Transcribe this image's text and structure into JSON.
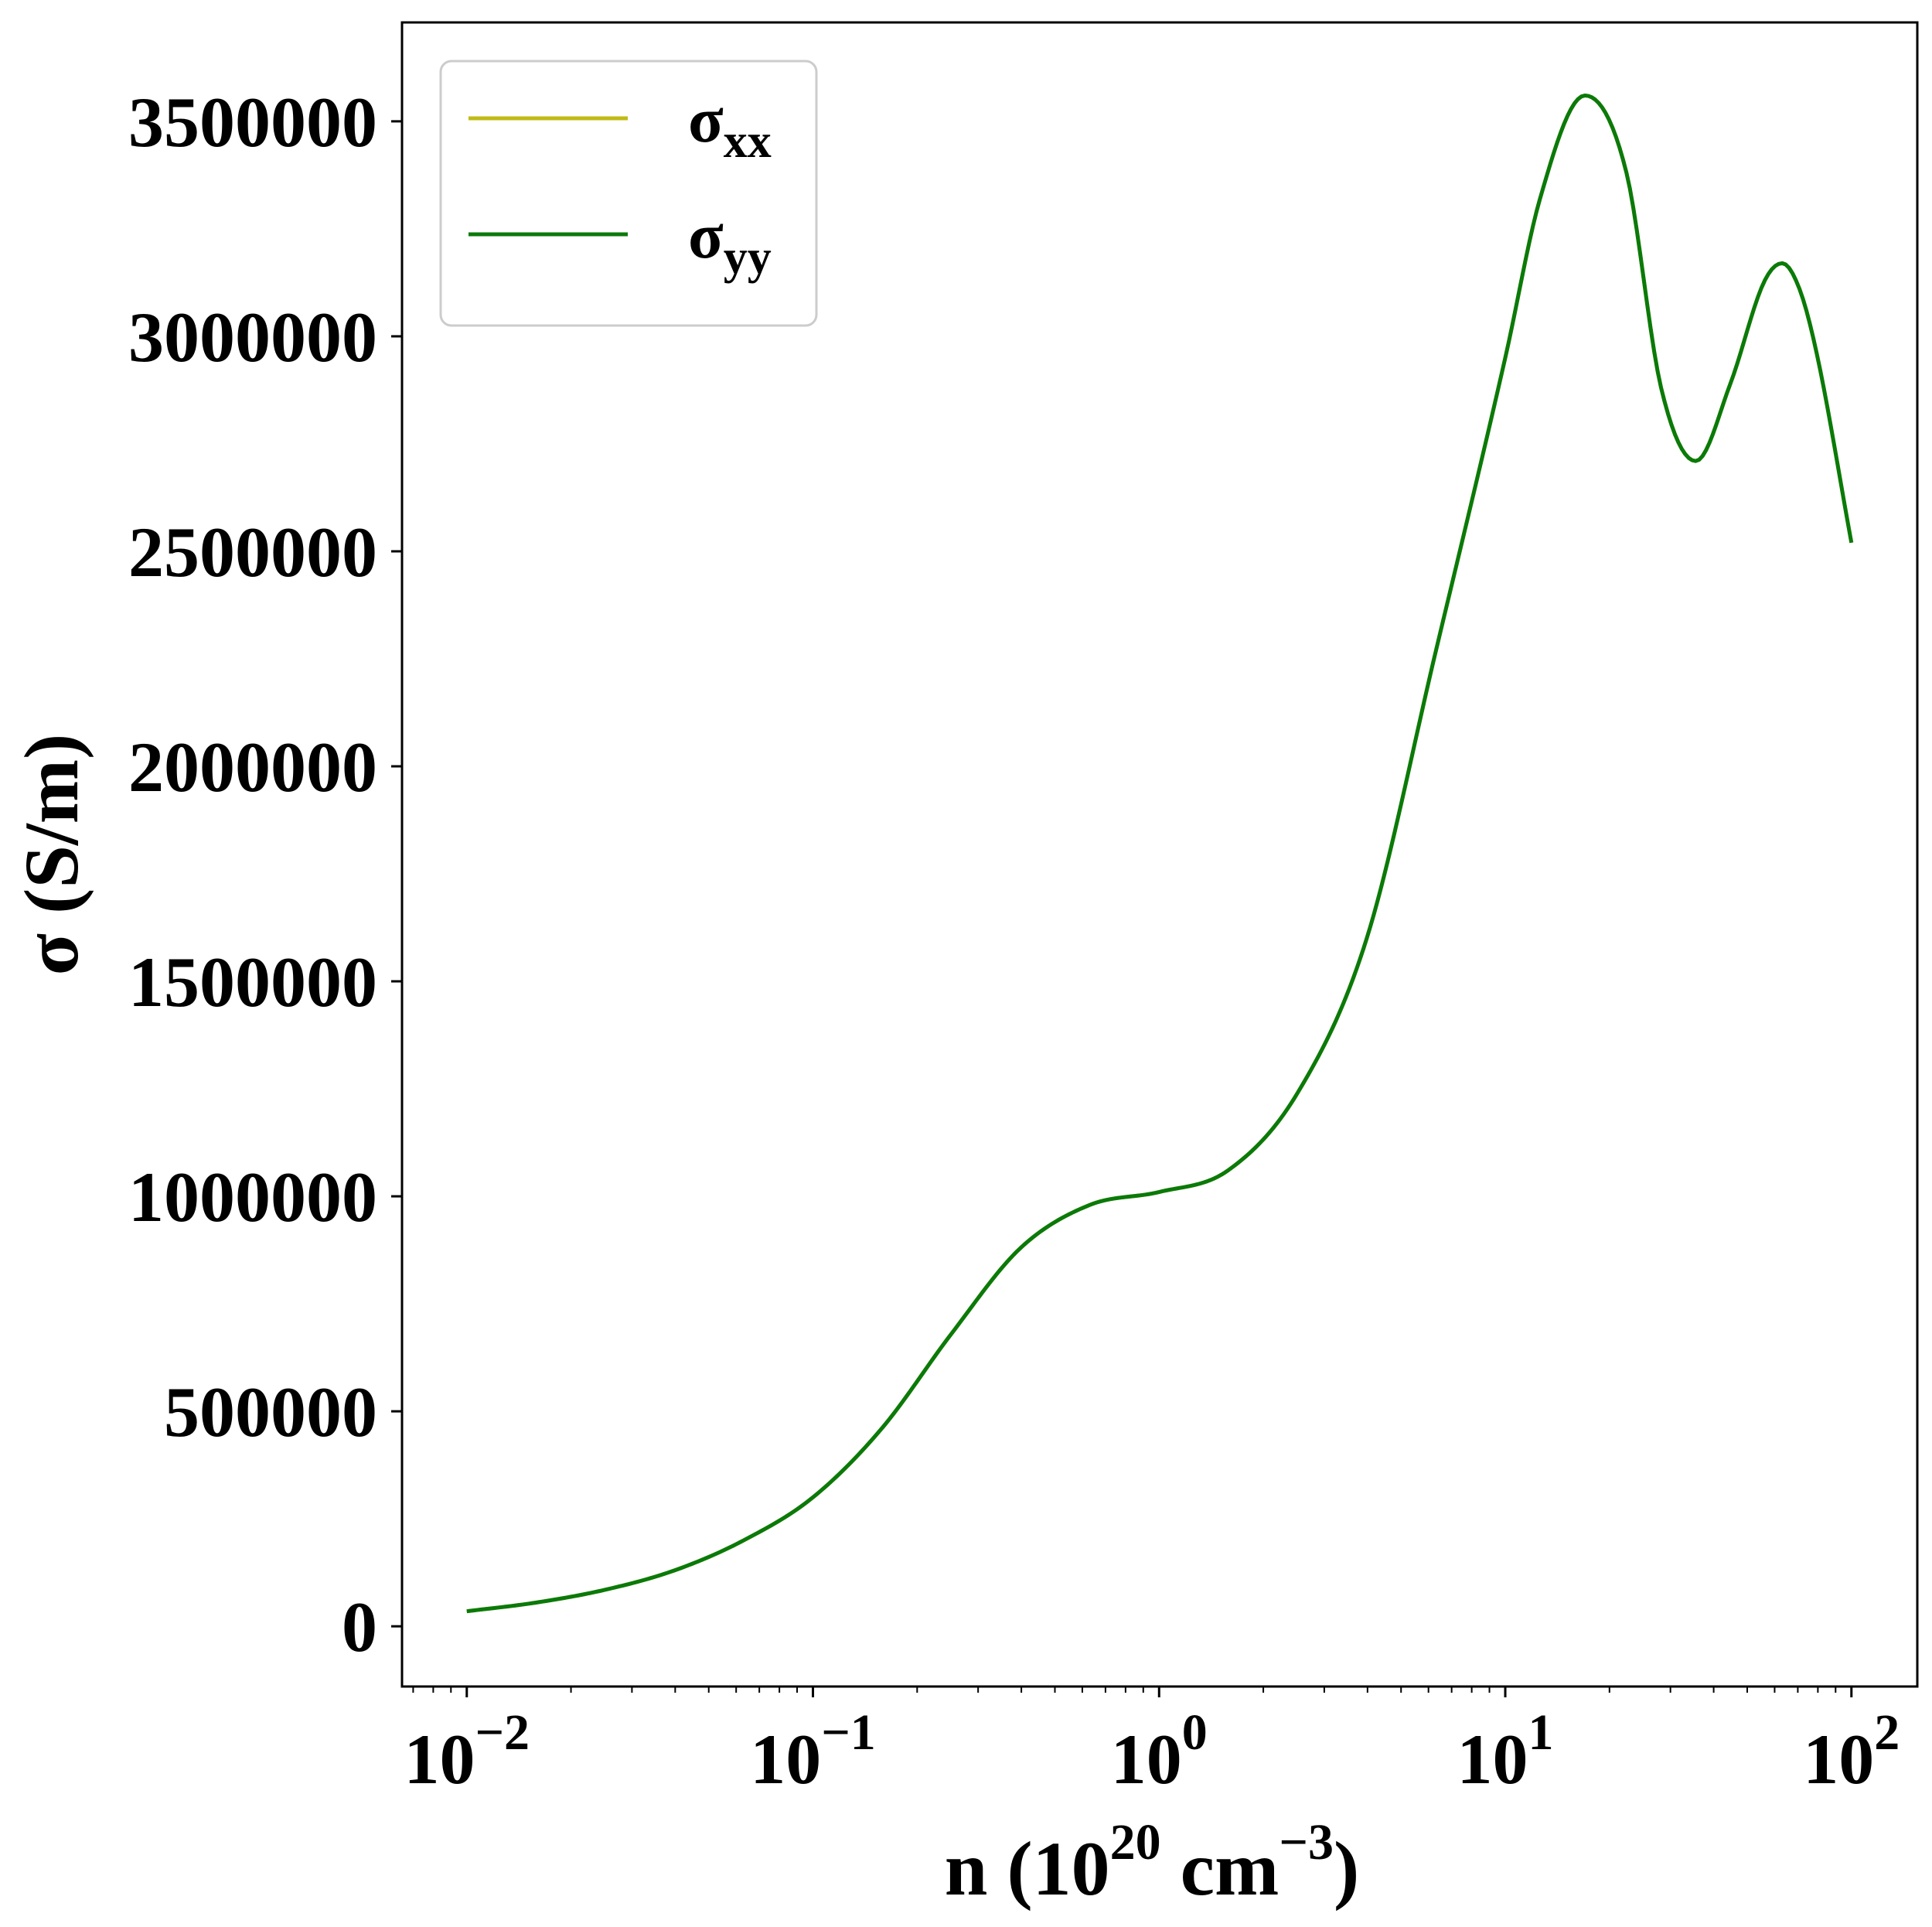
{
  "chart_data": {
    "type": "line",
    "xscale": "log",
    "xlim": [
      0.0065,
      155
    ],
    "ylim": [
      -140000,
      3730000
    ],
    "xlabel": {
      "prefix": "n (10",
      "sup1": "20",
      "mid": " cm",
      "sup2": "−3",
      "suffix": ")"
    },
    "ylabel": "σ (S/m)",
    "grid": false,
    "legend_position": "top-left",
    "yticks": [
      {
        "value": 0,
        "label": "0"
      },
      {
        "value": 500000,
        "label": "500000"
      },
      {
        "value": 1000000,
        "label": "1000000"
      },
      {
        "value": 1500000,
        "label": "1500000"
      },
      {
        "value": 2000000,
        "label": "2000000"
      },
      {
        "value": 2500000,
        "label": "2500000"
      },
      {
        "value": 3000000,
        "label": "3000000"
      },
      {
        "value": 3500000,
        "label": "3500000"
      }
    ],
    "xticks": [
      {
        "value": 0.01,
        "base": "10",
        "exp": "−2"
      },
      {
        "value": 0.1,
        "base": "10",
        "exp": "−1"
      },
      {
        "value": 1,
        "base": "10",
        "exp": "0"
      },
      {
        "value": 10,
        "base": "10",
        "exp": "1"
      },
      {
        "value": 100,
        "base": "10",
        "exp": "2"
      }
    ],
    "series": [
      {
        "name": {
          "base": "σ",
          "sub": "xx"
        },
        "color": "#c0bb15",
        "x": [
          0.01,
          0.0158,
          0.0251,
          0.0398,
          0.0631,
          0.1,
          0.158,
          0.251,
          0.398,
          0.631,
          1.0,
          1.58,
          2.51,
          3.98,
          6.31,
          10.0,
          12.6,
          17.0,
          22.4,
          28.2,
          35.5,
          44.7,
          56.2,
          63.1,
          70.8,
          79.4,
          100.0
        ],
        "y": [
          35000,
          55000,
          85000,
          130000,
          200000,
          300000,
          460000,
          680000,
          880000,
          980000,
          1010000,
          1060000,
          1240000,
          1600000,
          2270000,
          2950000,
          3320000,
          3560000,
          3380000,
          2880000,
          2710000,
          2890000,
          3130000,
          3170000,
          3110000,
          2960000,
          2520000
        ]
      },
      {
        "name": {
          "base": "σ",
          "sub": "yy"
        },
        "color": "#0a7a0a",
        "x": [
          0.01,
          0.0158,
          0.0251,
          0.0398,
          0.0631,
          0.1,
          0.158,
          0.251,
          0.398,
          0.631,
          1.0,
          1.58,
          2.51,
          3.98,
          6.31,
          10.0,
          12.6,
          17.0,
          22.4,
          28.2,
          35.5,
          44.7,
          56.2,
          63.1,
          70.8,
          79.4,
          100.0
        ],
        "y": [
          35000,
          55000,
          85000,
          130000,
          200000,
          300000,
          460000,
          680000,
          880000,
          980000,
          1010000,
          1060000,
          1240000,
          1600000,
          2270000,
          2950000,
          3320000,
          3560000,
          3380000,
          2880000,
          2710000,
          2890000,
          3130000,
          3170000,
          3110000,
          2960000,
          2520000
        ]
      }
    ]
  }
}
